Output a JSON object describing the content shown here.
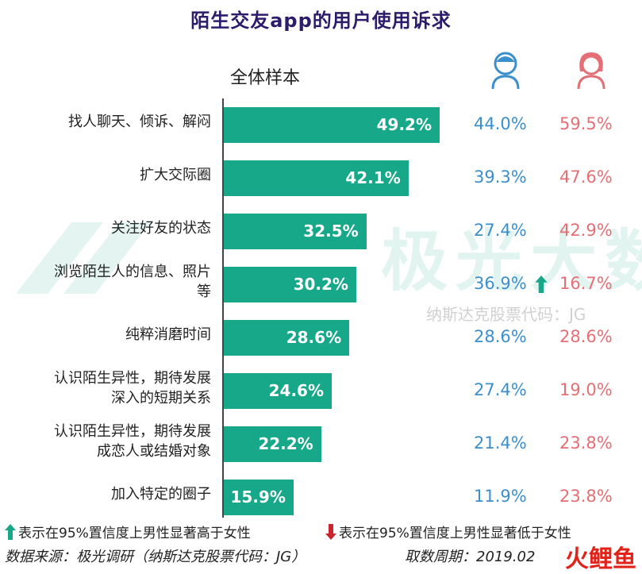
{
  "title": "陌生交友app的用户使用诉求",
  "sample_label": "全体样本",
  "icons": {
    "male": "male-user-icon",
    "female": "female-user-icon"
  },
  "colors": {
    "bar": "#17a88a",
    "male": "#3b8fcc",
    "female": "#e46f74",
    "title": "#2d1c6b",
    "up_arrow": "#17a88a",
    "down_arrow": "#c8262c"
  },
  "chart_data": {
    "type": "bar",
    "orientation": "horizontal",
    "title": "陌生交友app的用户使用诉求",
    "categories": [
      "找人聊天、倾诉、解闷",
      "扩大交际圈",
      "关注好友的状态",
      "浏览陌生人的信息、照片等",
      "纯粹消磨时间",
      "认识陌生异性，期待发展深入的短期关系",
      "认识陌生异性，期待发展成恋人或结婚对象",
      "加入特定的圈子"
    ],
    "category_lines": [
      [
        "找人聊天、倾诉、解闷"
      ],
      [
        "扩大交际圈"
      ],
      [
        "关注好友的状态"
      ],
      [
        "浏览陌生人的信息、照片",
        "等"
      ],
      [
        "纯粹消磨时间"
      ],
      [
        "认识陌生异性，期待发展",
        "深入的短期关系"
      ],
      [
        "认识陌生异性，期待发展",
        "成恋人或结婚对象"
      ],
      [
        "加入特定的圈子"
      ]
    ],
    "series": [
      {
        "name": "全体样本",
        "values": [
          49.2,
          42.1,
          32.5,
          30.2,
          28.6,
          24.6,
          22.2,
          15.9
        ],
        "labels": [
          "49.2%",
          "42.1%",
          "32.5%",
          "30.2%",
          "28.6%",
          "24.6%",
          "22.2%",
          "15.9%"
        ]
      },
      {
        "values": [
          44.0,
          39.3,
          27.4,
          36.9,
          28.6,
          27.4,
          21.4,
          11.9
        ],
        "labels": [
          "44.0%",
          "39.3%",
          "27.4%",
          "36.9%",
          "28.6%",
          "27.4%",
          "21.4%",
          "11.9%"
        ]
      },
      {
        "values": [
          59.5,
          47.6,
          42.9,
          16.7,
          28.6,
          19.0,
          23.8,
          23.8
        ],
        "labels": [
          "59.5%",
          "47.6%",
          "42.9%",
          "16.7%",
          "28.6%",
          "19.0%",
          "23.8%",
          "23.8%"
        ]
      }
    ],
    "significant_higher_male": [
      3
    ],
    "xlim": [
      0,
      60
    ]
  },
  "legend": {
    "up_text": "表示在95%置信度上男性显著高于女性",
    "down_text": "表示在95%置信度上男性显著低于女性"
  },
  "footer": {
    "source": "数据来源：极光调研（纳斯达克股票代码：JG）",
    "period": "取数周期：2019.02"
  },
  "watermark": {
    "main": "极光大数据",
    "sub": "纳斯达克股票代码：JG"
  },
  "corner_logo": "火鲤鱼"
}
